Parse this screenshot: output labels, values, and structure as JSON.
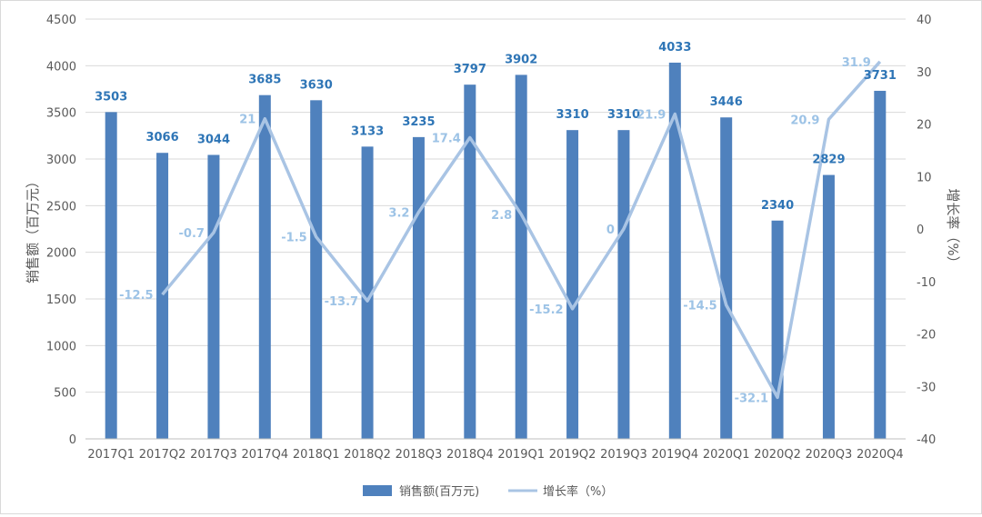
{
  "chart_data": {
    "type": "bar",
    "categories": [
      "2017Q1",
      "2017Q2",
      "2017Q3",
      "2017Q4",
      "2018Q1",
      "2018Q2",
      "2018Q3",
      "2018Q4",
      "2019Q1",
      "2019Q2",
      "2019Q3",
      "2019Q4",
      "2020Q1",
      "2020Q2",
      "2020Q3",
      "2020Q4"
    ],
    "series": [
      {
        "name": "销售额(百万元)",
        "type": "bar",
        "axis": "left",
        "color": "#4f81bd",
        "values": [
          3503,
          3066,
          3044,
          3685,
          3630,
          3133,
          3235,
          3797,
          3902,
          3310,
          3310,
          4033,
          3446,
          2340,
          2829,
          3731
        ],
        "labels": [
          "3503",
          "3066",
          "3044",
          "3685",
          "3630",
          "3133",
          "3235",
          "3797",
          "3902",
          "3310",
          "3310",
          "4033",
          "3446",
          "2340",
          "2829",
          "3731"
        ]
      },
      {
        "name": "增长率（%）",
        "type": "line",
        "axis": "right",
        "color": "#a9c4e4",
        "values": [
          null,
          -12.5,
          -0.7,
          21,
          -1.5,
          -13.7,
          3.2,
          17.4,
          2.8,
          -15.2,
          0,
          21.9,
          -14.5,
          -32.1,
          20.9,
          31.9
        ],
        "labels": [
          "",
          "-12.5",
          "-0.7",
          "21",
          "-1.5",
          "-13.7",
          "3.2",
          "17.4",
          "2.8",
          "-15.2",
          "0",
          "21.9",
          "-14.5",
          "-32.1",
          "20.9",
          "31.9"
        ]
      }
    ],
    "ylabel": "销售额（百万元）",
    "y2label": "增长率（%）",
    "ylim": [
      0,
      4500
    ],
    "y2lim": [
      -40,
      40
    ],
    "yticks": [
      "0",
      "500",
      "1000",
      "1500",
      "2000",
      "2500",
      "3000",
      "3500",
      "4000",
      "4500"
    ],
    "y2ticks": [
      "-40",
      "-30",
      "-20",
      "-10",
      "0",
      "10",
      "20",
      "30",
      "40"
    ],
    "grid": true,
    "legend": "bottom"
  }
}
